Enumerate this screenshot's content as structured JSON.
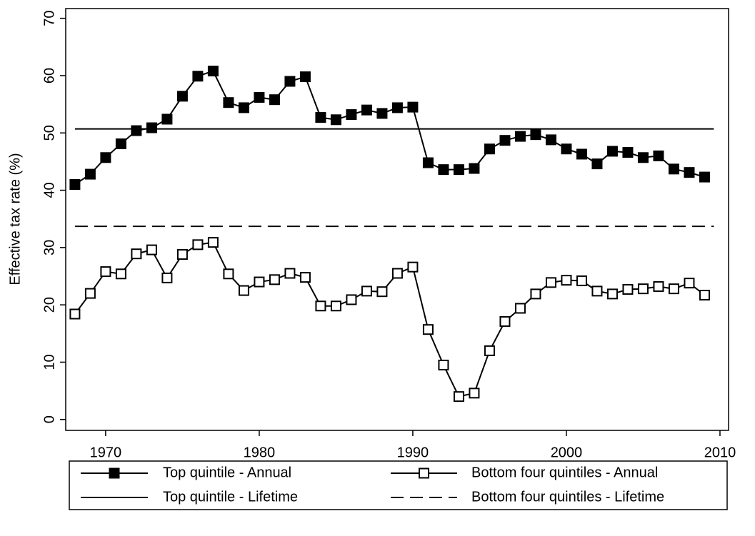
{
  "chart_data": {
    "type": "line",
    "y_label": "Effective tax rate (%)",
    "x": [
      1968,
      1969,
      1970,
      1971,
      1972,
      1973,
      1974,
      1975,
      1976,
      1977,
      1978,
      1979,
      1980,
      1981,
      1982,
      1983,
      1984,
      1985,
      1986,
      1987,
      1988,
      1989,
      1990,
      1991,
      1992,
      1993,
      1994,
      1995,
      1996,
      1997,
      1998,
      1999,
      2000,
      2001,
      2002,
      2003,
      2004,
      2005,
      2006,
      2007,
      2008,
      2009
    ],
    "series": [
      {
        "name": "Top quintile - Annual",
        "color": "#000000",
        "marker": "filled-square",
        "dash": "solid",
        "values": [
          41.0,
          42.8,
          45.7,
          48.1,
          50.4,
          50.9,
          52.4,
          56.4,
          59.9,
          60.8,
          55.3,
          54.4,
          56.2,
          55.8,
          59.0,
          59.8,
          52.7,
          52.3,
          53.2,
          54.0,
          53.4,
          54.4,
          54.5,
          44.8,
          43.6,
          43.6,
          43.8,
          47.2,
          48.7,
          49.4,
          49.7,
          48.8,
          47.2,
          46.3,
          44.6,
          46.8,
          46.6,
          45.7,
          46.0,
          43.7,
          43.1,
          42.3
        ]
      },
      {
        "name": "Bottom four quintiles - Annual",
        "color": "#000000",
        "marker": "open-square",
        "dash": "solid",
        "values": [
          18.4,
          22.0,
          25.8,
          25.4,
          28.9,
          29.6,
          24.7,
          28.8,
          30.5,
          30.9,
          25.4,
          22.5,
          24.0,
          24.4,
          25.5,
          24.8,
          19.8,
          19.8,
          20.9,
          22.4,
          22.3,
          25.5,
          26.6,
          15.7,
          9.5,
          4.0,
          4.6,
          12.0,
          17.1,
          19.4,
          21.9,
          23.9,
          24.3,
          24.2,
          22.4,
          21.9,
          22.7,
          22.8,
          23.2,
          22.8,
          23.8,
          21.7
        ]
      },
      {
        "name": "Top quintile - Lifetime",
        "color": "#000000",
        "marker": "none",
        "dash": "solid",
        "x": [
          1968,
          2009.6
        ],
        "values": [
          50.7,
          50.7
        ]
      },
      {
        "name": "Bottom four quintiles - Lifetime",
        "color": "#000000",
        "marker": "none",
        "dash": "dashed",
        "x": [
          1968,
          2009.6
        ],
        "values": [
          33.7,
          33.7
        ]
      }
    ],
    "xlim": [
      1967.4,
      2010.56
    ],
    "ylim": [
      -1.9,
      71.7
    ],
    "xticks": [
      1970,
      1980,
      1990,
      2000,
      2010
    ],
    "yticks": [
      0,
      10,
      20,
      30,
      40,
      50,
      60,
      70
    ],
    "grid": false,
    "legend": "bottom"
  }
}
